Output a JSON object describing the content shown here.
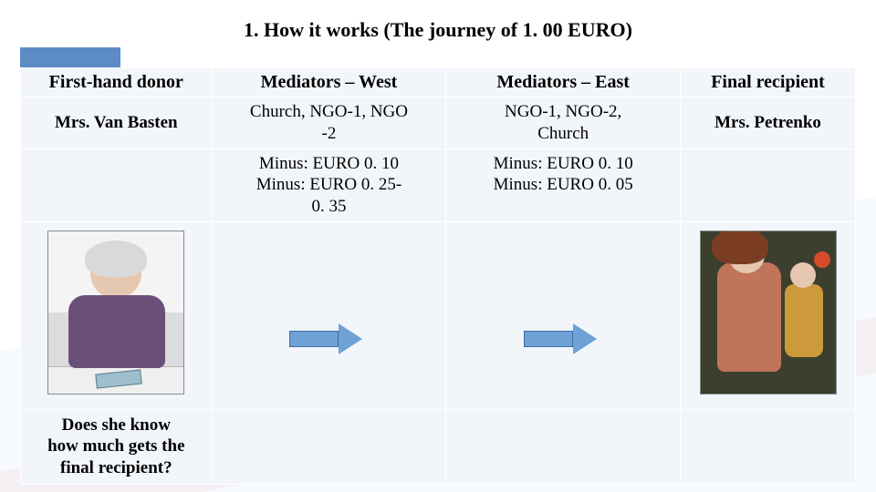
{
  "title": "1. How it works (The journey of 1. 00 EURO)",
  "colors": {
    "accent_bar": "#5c8bc6",
    "cell_bg": "#f2f6fb",
    "arrow_fill": "#6fa0d6",
    "arrow_border": "#3d6fa8"
  },
  "table": {
    "headers": [
      "First-hand donor",
      "Mediators – West",
      "Mediators – East",
      "Final recipient"
    ],
    "row2": [
      "Mrs. Van Basten",
      "Church, NGO-1, NGO\n-2",
      "NGO-1, NGO-2,\nChurch",
      "Mrs. Petrenko"
    ],
    "row3": [
      "",
      "Minus: EURO 0. 10\nMinus: EURO 0. 25-\n0. 35",
      "Minus: EURO 0. 10\nMinus: EURO 0. 05",
      ""
    ],
    "row5": [
      "Does she know\nhow much gets the\nfinal recipient?",
      "",
      "",
      ""
    ]
  },
  "images": {
    "donor_alt": "elderly-woman-with-money",
    "recipient_alt": "mother-with-child"
  }
}
